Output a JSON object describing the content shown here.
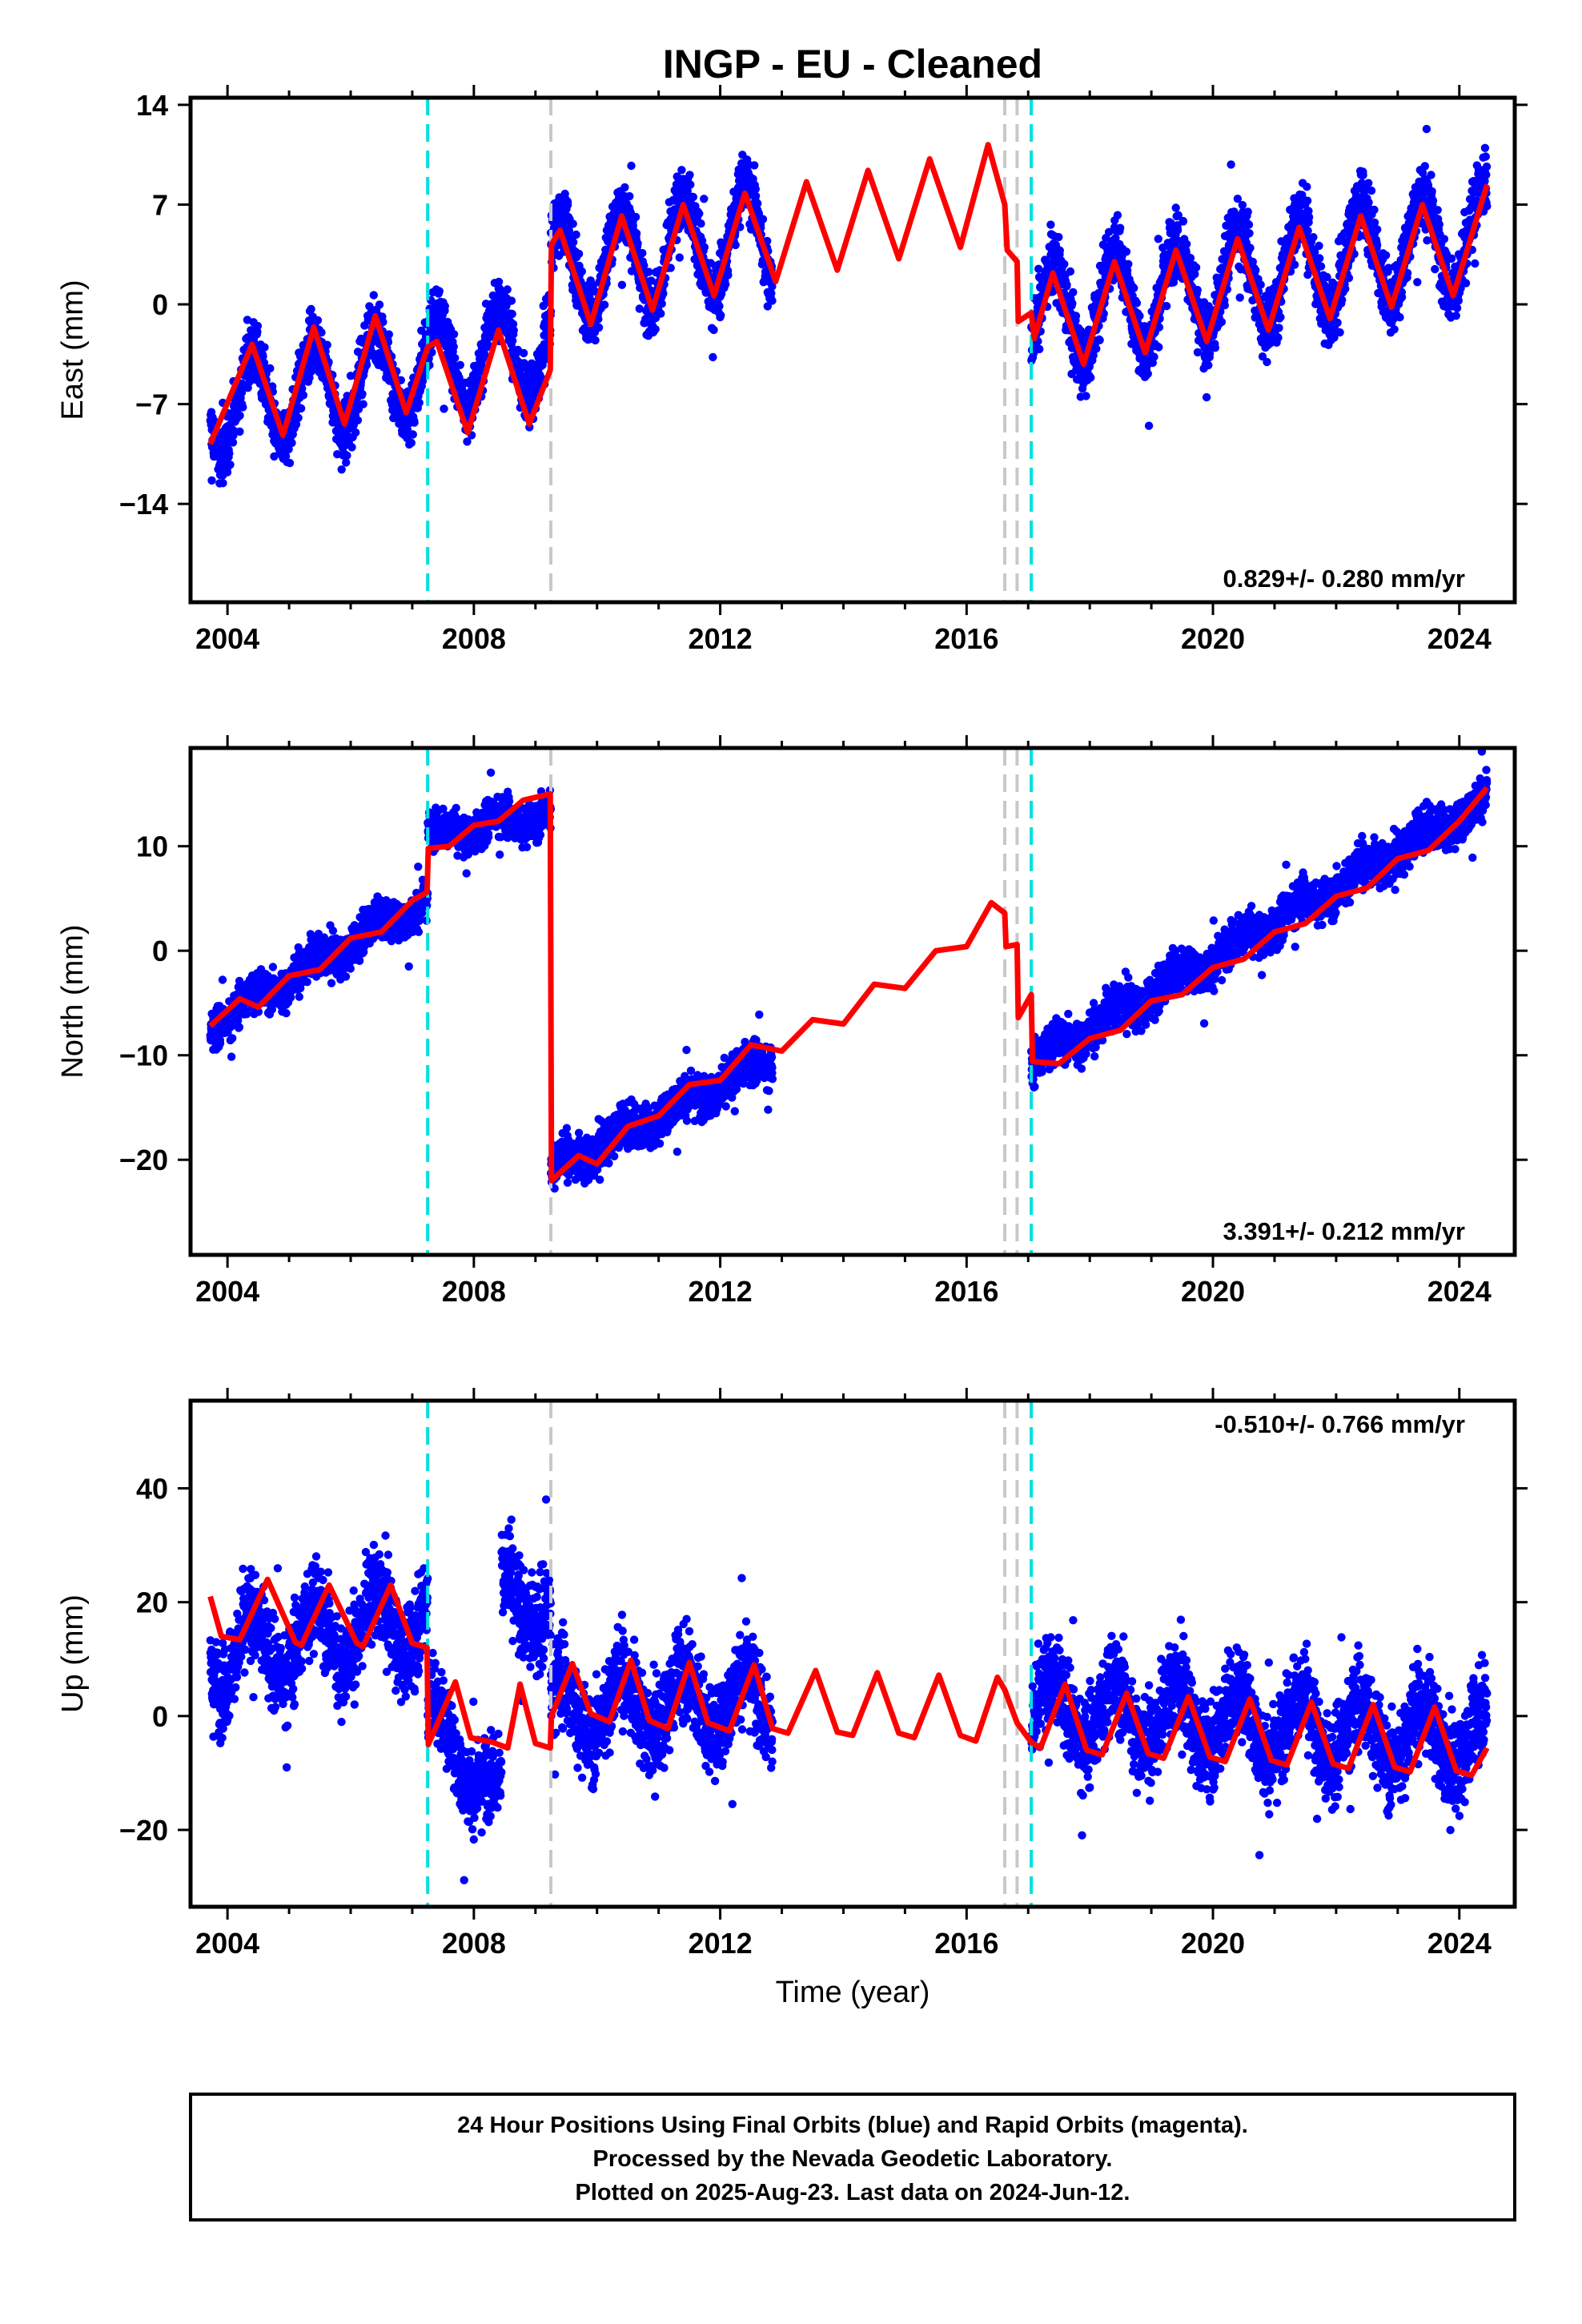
{
  "title": "INGP  - EU - Cleaned",
  "xlabel": "Time (year)",
  "x_ticks": [
    2004,
    2008,
    2012,
    2016,
    2020,
    2024
  ],
  "xlim": [
    2003.4,
    2024.9
  ],
  "colors": {
    "final_orbits": "#0000ff",
    "model": "#ff0000",
    "equipment_change": "#c8c8c8",
    "earthquake": "#00e0e0"
  },
  "caption": {
    "line1": "24 Hour Positions Using Final Orbits (blue) and Rapid Orbits (magenta).",
    "line2": "Processed by the Nevada Geodetic Laboratory.",
    "line3": "Plotted on 2025-Aug-23. Last data on 2024-Jun-12."
  },
  "chart_data": [
    {
      "type": "scatter",
      "component": "east",
      "ylabel": "East (mm)",
      "ylim": [
        -20.9,
        14.5
      ],
      "y_ticks": [
        14,
        7,
        0,
        -7,
        -14
      ],
      "rate_label": "0.829+/- 0.280 mm/yr",
      "rate_position": "bottom-right",
      "earthquake_lines": [
        2007.25,
        2017.05
      ],
      "equipment_lines": [
        2009.25,
        2016.62,
        2016.82
      ],
      "data_segments": [
        {
          "start": 2003.72,
          "end": 2009.25,
          "offset": -5.0,
          "rate": 0.829,
          "amp": 3.4,
          "noise": 1.4,
          "ref": 2006.5
        },
        {
          "start": 2009.25,
          "end": 2012.85,
          "offset": 3.6,
          "rate": 0.829,
          "amp": 3.6,
          "noise": 1.5,
          "ref": 2011.0
        },
        {
          "start": 2017.05,
          "end": 2024.45,
          "offset": 2.2,
          "rate": 0.829,
          "amp": 3.6,
          "noise": 1.6,
          "ref": 2021.0
        }
      ],
      "model_points": [
        [
          2003.72,
          -9.8
        ],
        [
          2004.4,
          -2.8
        ],
        [
          2004.9,
          -9.2
        ],
        [
          2005.4,
          -1.6
        ],
        [
          2005.9,
          -8.4
        ],
        [
          2006.4,
          -0.8
        ],
        [
          2006.9,
          -7.6
        ],
        [
          2007.25,
          -3.0
        ],
        [
          2007.4,
          -2.6
        ],
        [
          2007.9,
          -9.0
        ],
        [
          2008.4,
          -1.8
        ],
        [
          2008.9,
          -8.4
        ],
        [
          2009.24,
          -4.6
        ],
        [
          2009.26,
          4.2
        ],
        [
          2009.4,
          5.2
        ],
        [
          2009.9,
          -1.4
        ],
        [
          2010.4,
          6.2
        ],
        [
          2010.9,
          -0.4
        ],
        [
          2011.4,
          7.0
        ],
        [
          2011.9,
          0.6
        ],
        [
          2012.4,
          7.8
        ],
        [
          2012.9,
          1.6
        ],
        [
          2013.4,
          8.6
        ],
        [
          2013.9,
          2.4
        ],
        [
          2014.4,
          9.4
        ],
        [
          2014.9,
          3.2
        ],
        [
          2015.4,
          10.2
        ],
        [
          2015.9,
          4.0
        ],
        [
          2016.35,
          11.2
        ],
        [
          2016.62,
          7.0
        ],
        [
          2016.66,
          3.8
        ],
        [
          2016.82,
          3.0
        ],
        [
          2016.84,
          -1.2
        ],
        [
          2017.05,
          -0.6
        ],
        [
          2017.1,
          -2.4
        ],
        [
          2017.4,
          2.2
        ],
        [
          2017.9,
          -4.2
        ],
        [
          2018.4,
          3.0
        ],
        [
          2018.9,
          -3.4
        ],
        [
          2019.4,
          3.8
        ],
        [
          2019.9,
          -2.6
        ],
        [
          2020.4,
          4.6
        ],
        [
          2020.9,
          -1.8
        ],
        [
          2021.4,
          5.4
        ],
        [
          2021.9,
          -1.0
        ],
        [
          2022.4,
          6.2
        ],
        [
          2022.9,
          -0.2
        ],
        [
          2023.4,
          7.0
        ],
        [
          2023.9,
          0.6
        ],
        [
          2024.45,
          8.4
        ]
      ]
    },
    {
      "type": "scatter",
      "component": "north",
      "ylabel": "North (mm)",
      "ylim": [
        -29.1,
        19.4
      ],
      "y_ticks": [
        10,
        0,
        -10,
        -20
      ],
      "rate_label": "3.391+/- 0.212 mm/yr",
      "rate_position": "bottom-right",
      "earthquake_lines": [
        2007.25,
        2017.05
      ],
      "equipment_lines": [
        2009.25,
        2016.62,
        2016.82
      ],
      "data_segments": [
        {
          "start": 2003.72,
          "end": 2007.25,
          "offset": -1.0,
          "rate": 3.391,
          "amp": 0.8,
          "noise": 1.3,
          "ref": 2005.5
        },
        {
          "start": 2007.25,
          "end": 2009.25,
          "offset": 12.0,
          "rate": 1.2,
          "amp": 0.8,
          "noise": 1.3,
          "ref": 2008.2
        },
        {
          "start": 2009.25,
          "end": 2012.85,
          "offset": -15.8,
          "rate": 3.0,
          "amp": 0.8,
          "noise": 1.4,
          "ref": 2011.0
        },
        {
          "start": 2017.05,
          "end": 2024.45,
          "offset": 2.0,
          "rate": 3.391,
          "amp": 0.8,
          "noise": 1.4,
          "ref": 2020.8
        }
      ],
      "model_points": [
        [
          2003.72,
          -7.2
        ],
        [
          2004.2,
          -4.6
        ],
        [
          2004.5,
          -5.4
        ],
        [
          2005.0,
          -2.4
        ],
        [
          2005.5,
          -1.8
        ],
        [
          2006.0,
          1.2
        ],
        [
          2006.5,
          1.8
        ],
        [
          2007.0,
          4.8
        ],
        [
          2007.24,
          5.6
        ],
        [
          2007.26,
          9.8
        ],
        [
          2007.6,
          10.0
        ],
        [
          2008.0,
          12.0
        ],
        [
          2008.4,
          12.4
        ],
        [
          2008.8,
          14.4
        ],
        [
          2009.24,
          15.0
        ],
        [
          2009.26,
          -22.0
        ],
        [
          2009.7,
          -19.6
        ],
        [
          2010.0,
          -20.4
        ],
        [
          2010.5,
          -16.8
        ],
        [
          2011.0,
          -15.8
        ],
        [
          2011.5,
          -12.8
        ],
        [
          2012.0,
          -12.4
        ],
        [
          2012.5,
          -9.0
        ],
        [
          2013.0,
          -9.6
        ],
        [
          2013.5,
          -6.6
        ],
        [
          2014.0,
          -7.0
        ],
        [
          2014.5,
          -3.2
        ],
        [
          2015.0,
          -3.6
        ],
        [
          2015.5,
          0.0
        ],
        [
          2016.0,
          0.4
        ],
        [
          2016.4,
          4.6
        ],
        [
          2016.62,
          3.6
        ],
        [
          2016.64,
          0.4
        ],
        [
          2016.82,
          0.6
        ],
        [
          2016.84,
          -6.4
        ],
        [
          2017.05,
          -4.2
        ],
        [
          2017.07,
          -10.6
        ],
        [
          2017.5,
          -10.8
        ],
        [
          2018.0,
          -8.4
        ],
        [
          2018.5,
          -7.6
        ],
        [
          2019.0,
          -4.8
        ],
        [
          2019.5,
          -4.2
        ],
        [
          2020.0,
          -1.6
        ],
        [
          2020.5,
          -0.8
        ],
        [
          2021.0,
          1.8
        ],
        [
          2021.5,
          2.6
        ],
        [
          2022.0,
          5.2
        ],
        [
          2022.5,
          6.0
        ],
        [
          2023.0,
          8.8
        ],
        [
          2023.5,
          9.6
        ],
        [
          2024.0,
          12.4
        ],
        [
          2024.45,
          15.6
        ]
      ]
    },
    {
      "type": "scatter",
      "component": "up",
      "ylabel": "Up (mm)",
      "ylim": [
        -33.5,
        55.4
      ],
      "y_ticks": [
        40,
        20,
        0,
        -20
      ],
      "rate_label": "-0.510+/- 0.766 mm/yr",
      "rate_position": "top-right",
      "earthquake_lines": [
        2007.25,
        2017.05
      ],
      "equipment_lines": [
        2009.25,
        2016.62,
        2016.82
      ],
      "data_segments": [
        {
          "start": 2003.72,
          "end": 2007.25,
          "offset": 14.0,
          "rate": 2.0,
          "amp": 6.0,
          "noise": 5.5,
          "ref": 2005.5
        },
        {
          "start": 2007.25,
          "end": 2008.45,
          "offset": -8.0,
          "rate": -12.0,
          "amp": 4.0,
          "noise": 5.0,
          "ref": 2007.9
        },
        {
          "start": 2008.45,
          "end": 2009.25,
          "offset": 20.0,
          "rate": -8.0,
          "amp": 3.0,
          "noise": 6.0,
          "ref": 2008.85
        },
        {
          "start": 2009.25,
          "end": 2012.85,
          "offset": 2.0,
          "rate": 0.4,
          "amp": 5.5,
          "noise": 5.5,
          "ref": 2011.0
        },
        {
          "start": 2017.05,
          "end": 2024.45,
          "offset": -1.5,
          "rate": -0.8,
          "amp": 5.5,
          "noise": 5.5,
          "ref": 2020.8
        }
      ],
      "model_points": [
        [
          2003.72,
          21.0
        ],
        [
          2003.9,
          14.0
        ],
        [
          2004.2,
          13.4
        ],
        [
          2004.65,
          24.0
        ],
        [
          2005.1,
          13.0
        ],
        [
          2005.2,
          12.4
        ],
        [
          2005.65,
          23.0
        ],
        [
          2006.1,
          12.8
        ],
        [
          2006.2,
          12.2
        ],
        [
          2006.65,
          23.0
        ],
        [
          2007.0,
          12.8
        ],
        [
          2007.24,
          12.0
        ],
        [
          2007.26,
          -5.0
        ],
        [
          2007.7,
          6.0
        ],
        [
          2007.95,
          -3.8
        ],
        [
          2008.3,
          -4.6
        ],
        [
          2008.55,
          -5.6
        ],
        [
          2008.75,
          5.6
        ],
        [
          2009.0,
          -4.8
        ],
        [
          2009.24,
          -5.6
        ],
        [
          2009.26,
          0.0
        ],
        [
          2009.6,
          9.2
        ],
        [
          2009.9,
          0.4
        ],
        [
          2010.2,
          -1.0
        ],
        [
          2010.55,
          9.8
        ],
        [
          2010.85,
          -0.8
        ],
        [
          2011.15,
          -2.2
        ],
        [
          2011.5,
          9.4
        ],
        [
          2011.8,
          -1.2
        ],
        [
          2012.15,
          -2.6
        ],
        [
          2012.55,
          9.0
        ],
        [
          2012.85,
          -2.2
        ],
        [
          2013.1,
          -3.0
        ],
        [
          2013.55,
          8.0
        ],
        [
          2013.9,
          -2.8
        ],
        [
          2014.15,
          -3.4
        ],
        [
          2014.55,
          7.6
        ],
        [
          2014.9,
          -3.0
        ],
        [
          2015.15,
          -3.8
        ],
        [
          2015.55,
          7.2
        ],
        [
          2015.9,
          -3.4
        ],
        [
          2016.15,
          -4.4
        ],
        [
          2016.5,
          6.8
        ],
        [
          2016.62,
          4.6
        ],
        [
          2016.82,
          -1.2
        ],
        [
          2017.05,
          -4.6
        ],
        [
          2017.2,
          -5.6
        ],
        [
          2017.6,
          5.6
        ],
        [
          2017.95,
          -6.0
        ],
        [
          2018.2,
          -6.8
        ],
        [
          2018.6,
          4.0
        ],
        [
          2018.95,
          -6.6
        ],
        [
          2019.2,
          -7.4
        ],
        [
          2019.6,
          3.4
        ],
        [
          2019.95,
          -7.2
        ],
        [
          2020.2,
          -8.0
        ],
        [
          2020.6,
          3.0
        ],
        [
          2020.95,
          -7.8
        ],
        [
          2021.2,
          -8.6
        ],
        [
          2021.6,
          2.4
        ],
        [
          2021.95,
          -8.4
        ],
        [
          2022.2,
          -9.2
        ],
        [
          2022.6,
          2.0
        ],
        [
          2022.95,
          -9.0
        ],
        [
          2023.2,
          -9.8
        ],
        [
          2023.6,
          1.6
        ],
        [
          2023.95,
          -9.6
        ],
        [
          2024.2,
          -10.4
        ],
        [
          2024.45,
          -5.6
        ]
      ]
    }
  ]
}
